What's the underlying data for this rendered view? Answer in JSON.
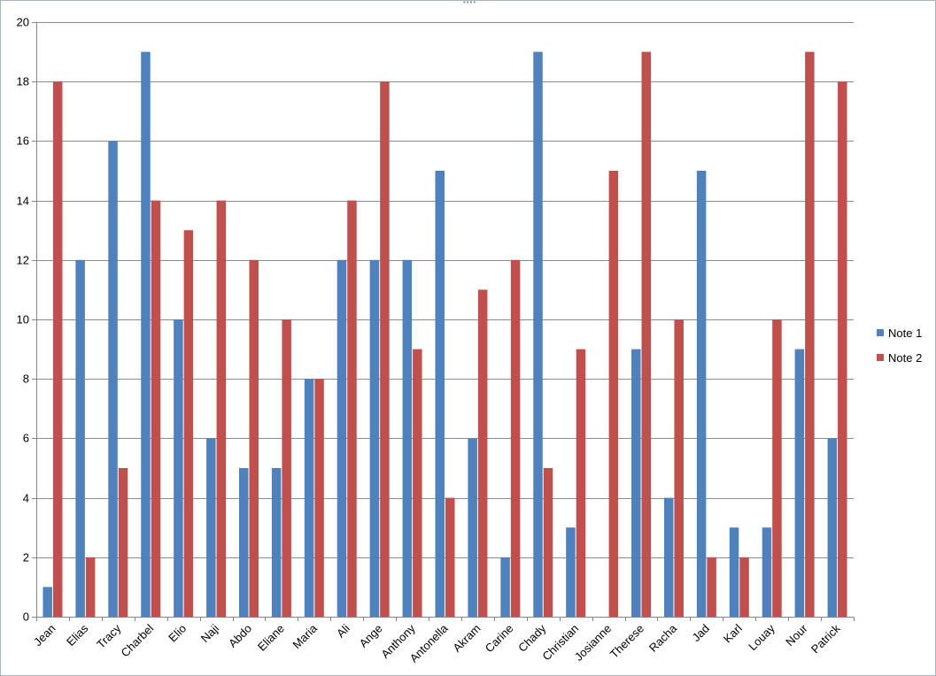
{
  "chart_data": {
    "type": "bar",
    "categories": [
      "Jean",
      "Elias",
      "Tracy",
      "Charbel",
      "Elio",
      "Naji",
      "Abdo",
      "Eliane",
      "Maria",
      "Ali",
      "Ange",
      "Anthony",
      "Antonella",
      "Akram",
      "Carine",
      "Chady",
      "Christian",
      "Josianne",
      "Therese",
      "Racha",
      "Jad",
      "Karl",
      "Louay",
      "Nour",
      "Patrick"
    ],
    "series": [
      {
        "name": "Note 1",
        "color": "#4f81bd",
        "values": [
          1,
          12,
          16,
          19,
          10,
          6,
          5,
          5,
          8,
          12,
          12,
          12,
          15,
          6,
          2,
          19,
          3,
          0,
          9,
          4,
          15,
          3,
          3,
          9,
          6
        ]
      },
      {
        "name": "Note 2",
        "color": "#c0504d",
        "values": [
          18,
          2,
          5,
          14,
          13,
          14,
          12,
          10,
          8,
          14,
          18,
          9,
          4,
          11,
          12,
          5,
          9,
          15,
          19,
          10,
          2,
          2,
          10,
          19,
          18
        ]
      }
    ],
    "ylim": [
      0,
      20
    ],
    "yticks": [
      0,
      2,
      4,
      6,
      8,
      10,
      12,
      14,
      16,
      18,
      20
    ],
    "grid": true,
    "legend": "right",
    "title": "",
    "xlabel": "",
    "ylabel": ""
  }
}
